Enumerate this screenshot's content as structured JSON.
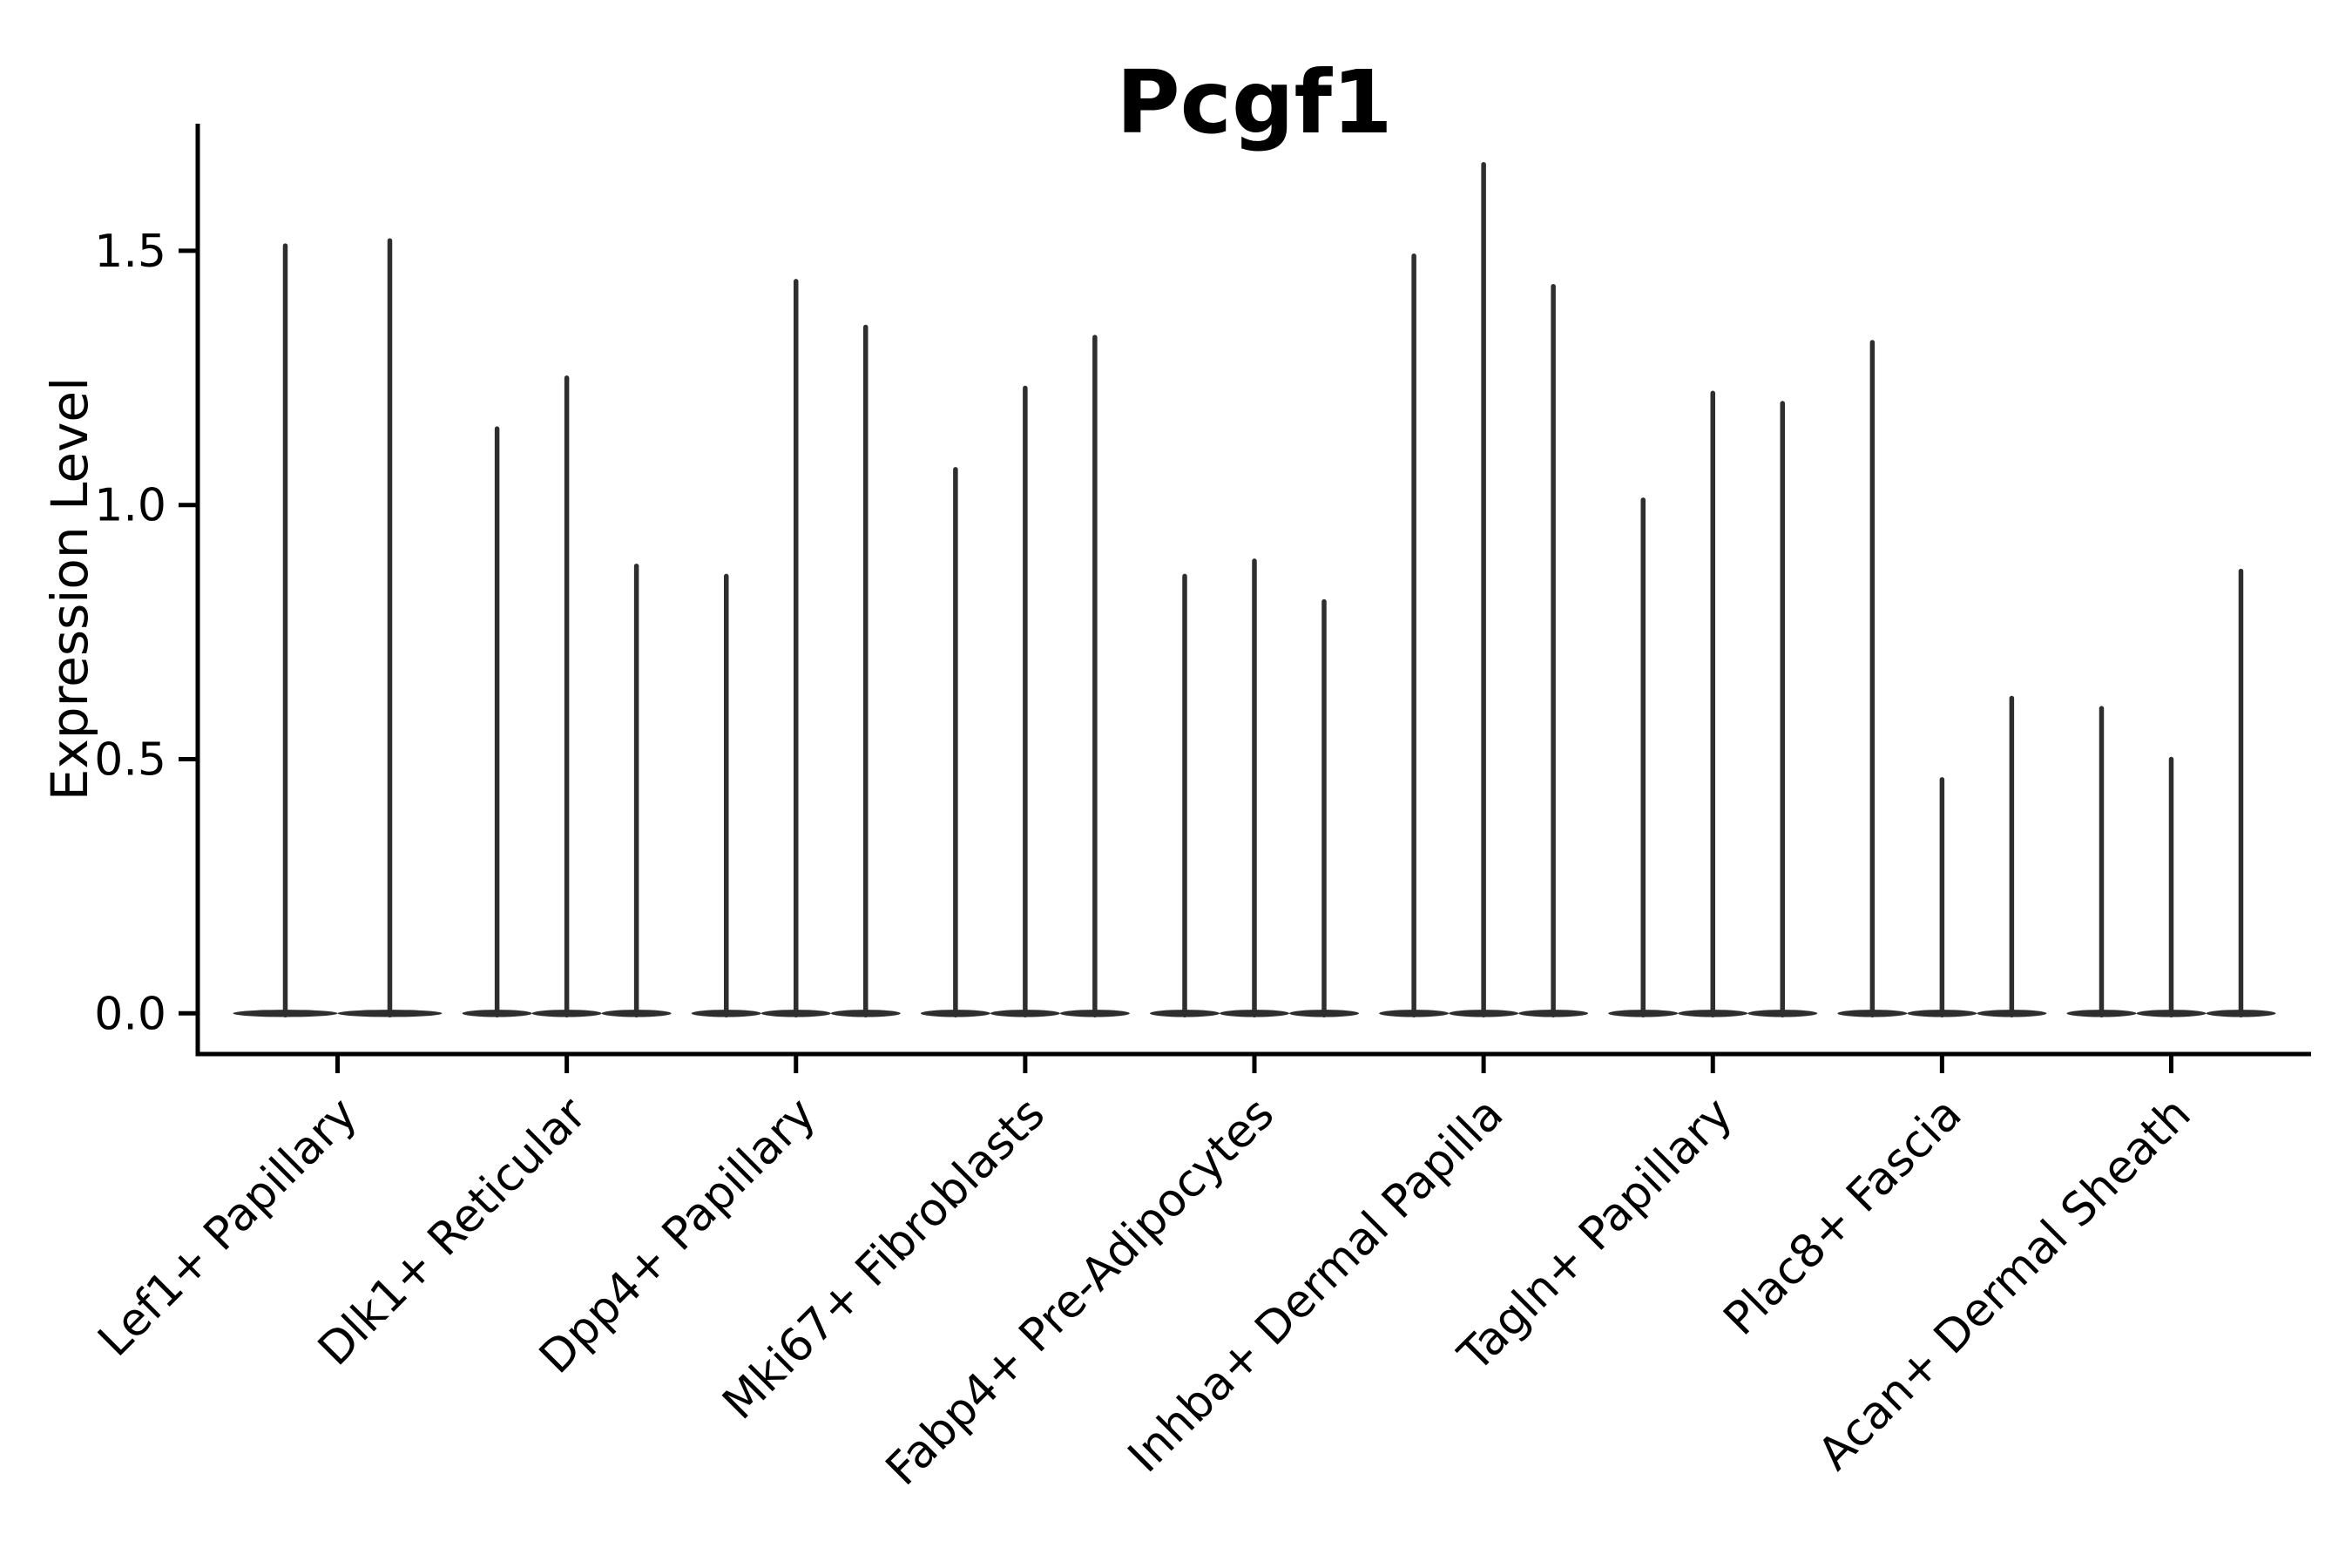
{
  "chart_data": {
    "type": "violin",
    "title": "Pcgf1",
    "ylabel": "Expression Level",
    "xlabel": "",
    "yticks": [
      "0.0",
      "0.5",
      "1.0",
      "1.5"
    ],
    "ytick_values": [
      0.0,
      0.5,
      1.0,
      1.5
    ],
    "ylim": [
      -0.08,
      1.75
    ],
    "grid": false,
    "legend": null,
    "violin_baseline_value": 0.0,
    "categories": [
      "Lef1+ Papillary",
      "Dlk1+ Reticular",
      "Dpp4+ Papillary",
      "Mki67+ Fibroblasts",
      "Fabp4+ Pre-Adipocytes",
      "Inhba+ Dermal Papilla",
      "Tagln+ Papillary",
      "Plac8+ Fascia",
      "Acan+ Dermal Sheath"
    ],
    "groups": [
      {
        "label": "Lef1+ Papillary",
        "violin_peaks": [
          1.51,
          1.52
        ]
      },
      {
        "label": "Dlk1+ Reticular",
        "violin_peaks": [
          1.15,
          1.25,
          0.88
        ]
      },
      {
        "label": "Dpp4+ Papillary",
        "violin_peaks": [
          0.86,
          1.44,
          1.35
        ]
      },
      {
        "label": "Mki67+ Fibroblasts",
        "violin_peaks": [
          1.07,
          1.23,
          1.33
        ]
      },
      {
        "label": "Fabp4+ Pre-Adipocytes",
        "violin_peaks": [
          0.86,
          0.89,
          0.81
        ]
      },
      {
        "label": "Inhba+ Dermal Papilla",
        "violin_peaks": [
          1.49,
          1.67,
          1.43
        ]
      },
      {
        "label": "Tagln+ Papillary",
        "violin_peaks": [
          1.01,
          1.22,
          1.2
        ]
      },
      {
        "label": "Plac8+ Fascia",
        "violin_peaks": [
          1.32,
          0.46,
          0.62
        ]
      },
      {
        "label": "Acan+ Dermal Sheath",
        "violin_peaks": [
          0.6,
          0.5,
          0.87
        ]
      }
    ],
    "colors": {
      "violin": "#2e2e2e",
      "axis": "#000000",
      "text": "#000000",
      "background": "#ffffff"
    }
  }
}
